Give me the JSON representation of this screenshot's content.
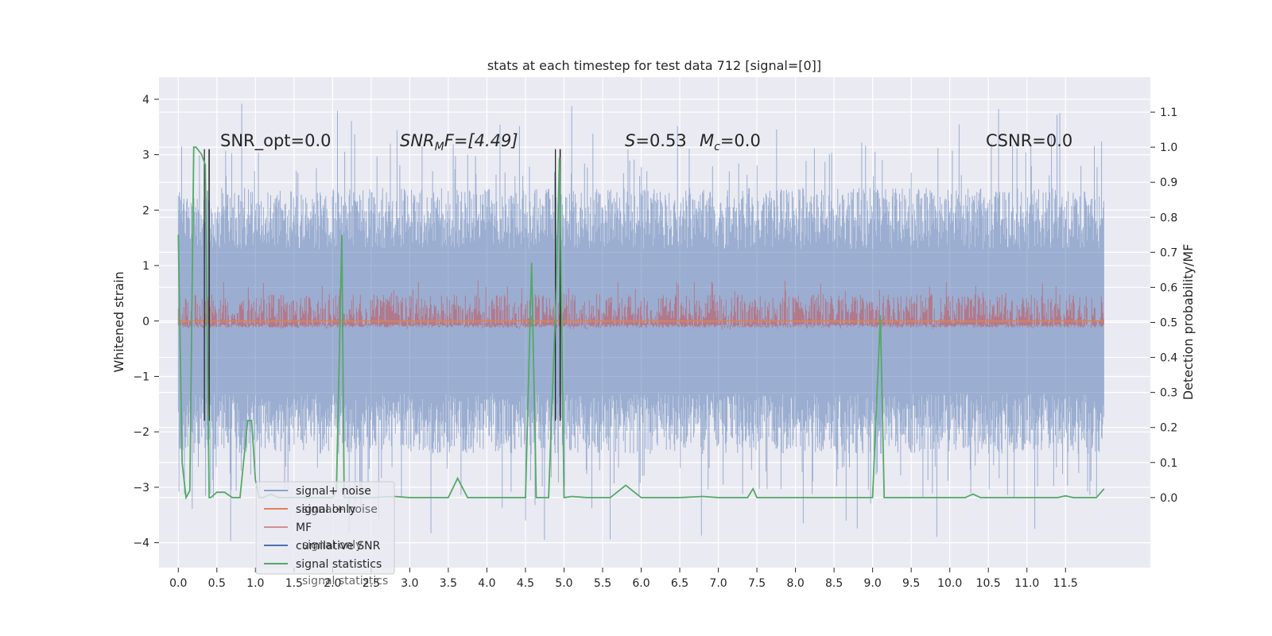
{
  "chart_data": {
    "type": "line",
    "title": "stats at each timestep for test data 712 [signal=[0]]",
    "xlabel": "",
    "ylabel": "Whitened strain",
    "y2label": "Detection probability/MF",
    "xlim": [
      -0.25,
      12.6
    ],
    "ylim": [
      -4.45,
      4.4
    ],
    "y2lim": [
      -0.2,
      1.2
    ],
    "x_ticks": [
      "0.0",
      "0.5",
      "1.0",
      "1.5",
      "2.0",
      "2.5",
      "3.0",
      "3.5",
      "4.0",
      "4.5",
      "5.0",
      "5.5",
      "6.0",
      "6.5",
      "7.0",
      "7.5",
      "8.0",
      "8.5",
      "9.0",
      "9.5",
      "10.0",
      "10.5",
      "11.0",
      "11.5"
    ],
    "y_ticks": [
      "4",
      "3",
      "2",
      "1",
      "0",
      "−1",
      "−2",
      "−3",
      "−4"
    ],
    "y2_ticks": [
      "1.1",
      "1.0",
      "0.9",
      "0.8",
      "0.7",
      "0.6",
      "0.5",
      "0.4",
      "0.3",
      "0.2",
      "0.1",
      "0.0"
    ],
    "grid": true,
    "legend_position": "lower-left",
    "legend": [
      "signal+ noise",
      "signal only",
      "MF",
      "cumilative SNR",
      "signal statistics"
    ],
    "legend_ghost": [
      "signal+ noise",
      "signal only",
      "signal statistics"
    ],
    "annotations": {
      "snr_opt": "SNR_opt=0.0",
      "snr_mf_base": "SNR",
      "snr_mf_sub": "M",
      "snr_mf_rest": "F=[4.49]",
      "s_label": "S",
      "s_value": "=0.53",
      "mc_base": "M",
      "mc_sub": "c",
      "mc_value": "=0.0",
      "csnr": "CSNR=0.0"
    },
    "series": [
      {
        "name": "signal+ noise",
        "color": "#4c72b0",
        "description": "noise band roughly -2.7..2.7 with spikes to ±4"
      },
      {
        "name": "signal only",
        "color": "#dd8452",
        "x": [
          0,
          12
        ],
        "y": [
          0,
          0
        ]
      },
      {
        "name": "MF",
        "color": "#c44e52",
        "description": "matched filter band 0.0..0.6"
      },
      {
        "name": "cumilative SNR",
        "color": "#4c72b0",
        "x": [
          0.4,
          0.4,
          4.95,
          4.95
        ],
        "y": [
          3.1,
          -1.8,
          3.1,
          -1.8
        ]
      },
      {
        "name": "signal statistics",
        "color": "#55a868",
        "x": [
          0.0,
          0.05,
          0.1,
          0.15,
          0.2,
          0.23,
          0.3,
          0.35,
          0.4,
          0.42,
          0.5,
          0.6,
          0.7,
          0.8,
          0.9,
          0.95,
          1.0,
          1.05,
          1.1,
          1.2,
          1.3,
          1.4,
          1.5,
          1.6,
          1.7,
          1.8,
          1.9,
          2.0,
          2.05,
          2.12,
          2.15,
          2.2,
          2.3,
          2.5,
          2.8,
          3.0,
          3.3,
          3.5,
          3.62,
          3.75,
          4.0,
          4.5,
          4.58,
          4.64,
          4.7,
          4.8,
          4.9,
          4.94,
          5.0,
          5.1,
          5.3,
          5.6,
          5.8,
          6.0,
          6.5,
          6.8,
          7.0,
          7.38,
          7.45,
          7.5,
          8.0,
          9.0,
          9.1,
          9.15,
          9.2,
          9.5,
          10.0,
          10.2,
          10.3,
          10.4,
          11.0,
          11.4,
          11.5,
          11.6,
          11.9,
          12.0
        ],
        "y": [
          0.75,
          0.1,
          0.0,
          0.02,
          1.0,
          1.0,
          0.98,
          0.95,
          0.0,
          0.0,
          0.015,
          0.015,
          0.0,
          0.0,
          0.22,
          0.22,
          0.05,
          0.0,
          0.0,
          0.01,
          0.0,
          0.0,
          0.0,
          0.0,
          0.0,
          0.0,
          0.0,
          0.0,
          0.02,
          0.75,
          0.0,
          0.0,
          0.0,
          0.0,
          0.003,
          0.0,
          0.0,
          0.0,
          0.055,
          0.0,
          0.0,
          0.0,
          0.67,
          0.0,
          0.0,
          0.0,
          0.6,
          0.97,
          0.0,
          0.003,
          0.0,
          0.0,
          0.035,
          0.0,
          0.0,
          0.003,
          0.0,
          0.0,
          0.025,
          0.0,
          0.0,
          0.0,
          0.52,
          0.0,
          0.0,
          0.0,
          0.0,
          0.0,
          0.01,
          0.0,
          0.0,
          0.0,
          0.005,
          0.0,
          0.0,
          0.025
        ]
      }
    ]
  }
}
